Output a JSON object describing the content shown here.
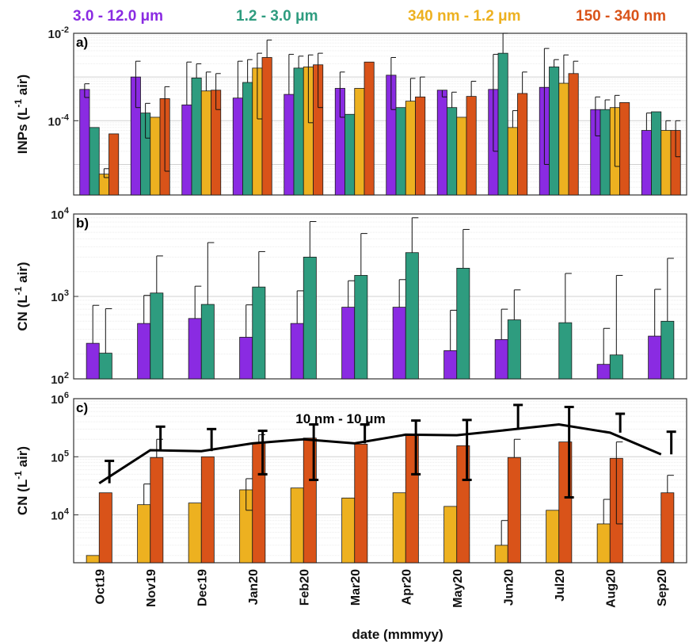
{
  "legend": [
    {
      "label": "3.0 - 12.0 μm",
      "color": "#8A2BE2"
    },
    {
      "label": "1.2 - 3.0 μm",
      "color": "#2E9C7F"
    },
    {
      "label": "340 nm - 1.2 μm",
      "color": "#EDB120"
    },
    {
      "label": "150 - 340 nm",
      "color": "#D95319"
    }
  ],
  "xlabel": "date (mmmyy)",
  "categories": [
    "Oct19",
    "Nov19",
    "Dec19",
    "Jan20",
    "Feb20",
    "Mar20",
    "Apr20",
    "May20",
    "Jun20",
    "Jul20",
    "Aug20",
    "Sep20"
  ],
  "chart_data": [
    {
      "type": "bar",
      "panel_label": "a)",
      "ylabel_main": "INPs (L",
      "ylabel_sup": "-1",
      "ylabel_tail": " air)",
      "yscale": "log",
      "ylim": [
        2e-06,
        0.01
      ],
      "yticks": [
        {
          "value": 0.0001,
          "base": "10",
          "exp": "-4"
        },
        {
          "value": 0.01,
          "base": "10",
          "exp": "-2"
        }
      ],
      "categories": [
        "Oct19",
        "Nov19",
        "Dec19",
        "Jan20",
        "Feb20",
        "Mar20",
        "Apr20",
        "May20",
        "Jun20",
        "Jul20",
        "Aug20",
        "Sep20"
      ],
      "series": [
        {
          "name": "3.0 - 12.0 μm",
          "color": "#8A2BE2",
          "values": [
            0.00052,
            0.001,
            0.00023,
            0.00033,
            0.0004,
            0.00055,
            0.0011,
            0.0005,
            0.00052,
            0.00058,
            0.00018,
            6e-05
          ],
          "err_low": [
            0.00034,
            0.0002,
            null,
            null,
            null,
            0.00012,
            0.00018,
            null,
            2e-05,
            1e-05,
            4.5e-05,
            null
          ],
          "err_high": [
            0.0007,
            0.0023,
            0.0022,
            0.0023,
            0.0033,
            0.0013,
            0.0028,
            0.00035,
            0.0033,
            0.0045,
            0.00035,
            0.00015
          ]
        },
        {
          "name": "1.2 - 3.0 μm",
          "color": "#2E9C7F",
          "values": [
            7e-05,
            0.00015,
            0.00095,
            0.00075,
            0.0016,
            0.00014,
            0.0002,
            0.0002,
            0.0035,
            0.0017,
            0.00018,
            0.00016
          ],
          "err_low": [
            null,
            4e-05,
            null,
            null,
            null,
            null,
            null,
            null,
            null,
            null,
            null,
            null
          ],
          "err_high": [
            null,
            0.00025,
            0.002,
            0.0025,
            0.003,
            null,
            null,
            0.00045,
            0.01,
            0.0025,
            0.0003,
            null
          ],
          "no_error": [
            0,
            1
          ]
        },
        {
          "name": "340 nm - 1.2 μm",
          "color": "#EDB120",
          "values": [
            6e-06,
            0.00012,
            0.00048,
            0.0016,
            0.0017,
            0.00055,
            0.00028,
            0.00012,
            7e-05,
            0.00072,
            0.0002,
            6e-05
          ],
          "err_low": [
            5e-06,
            null,
            null,
            0.00011,
            9e-05,
            null,
            null,
            null,
            null,
            null,
            9e-06,
            null
          ],
          "err_high": [
            8e-06,
            null,
            0.0013,
            0.0035,
            0.0032,
            null,
            0.00093,
            null,
            0.00017,
            0.0032,
            0.00038,
            0.0001
          ]
        },
        {
          "name": "150 - 340 nm",
          "color": "#D95319",
          "values": [
            5e-05,
            0.00032,
            0.0005,
            0.0028,
            0.0019,
            0.0022,
            0.00035,
            0.00036,
            0.00042,
            0.0012,
            0.00026,
            6e-05
          ],
          "err_low": [
            null,
            7e-06,
            0.00018,
            null,
            0.0002,
            null,
            null,
            null,
            null,
            null,
            null,
            1.5e-05
          ],
          "err_high": [
            null,
            0.0006,
            0.0012,
            0.007,
            0.0035,
            null,
            0.001,
            0.0008,
            0.0013,
            0.0023,
            null,
            0.0001
          ]
        }
      ]
    },
    {
      "type": "bar",
      "panel_label": "b)",
      "ylabel_main": "CN (L",
      "ylabel_sup": "-1",
      "ylabel_tail": " air)",
      "yscale": "log",
      "ylim": [
        100,
        10000
      ],
      "yticks": [
        {
          "value": 100,
          "base": "10",
          "exp": "2"
        },
        {
          "value": 1000,
          "base": "10",
          "exp": "3"
        },
        {
          "value": 10000,
          "base": "10",
          "exp": "4"
        }
      ],
      "categories": [
        "Oct19",
        "Nov19",
        "Dec19",
        "Jan20",
        "Feb20",
        "Mar20",
        "Apr20",
        "May20",
        "Jun20",
        "Jul20",
        "Aug20",
        "Sep20"
      ],
      "series": [
        {
          "name": "3.0 - 12.0 μm",
          "color": "#8A2BE2",
          "values": [
            270,
            470,
            540,
            320,
            470,
            740,
            740,
            220,
            300,
            null,
            150,
            330
          ],
          "err_high": [
            780,
            1030,
            1330,
            790,
            1170,
            1550,
            1600,
            680,
            700,
            null,
            410,
            1220
          ]
        },
        {
          "name": "1.2 - 3.0 μm",
          "color": "#2E9C7F",
          "values": [
            205,
            1100,
            800,
            1300,
            3000,
            1800,
            3400,
            2200,
            520,
            480,
            195,
            500
          ],
          "err_high": [
            710,
            3100,
            4500,
            3500,
            8100,
            5800,
            9000,
            6500,
            1200,
            1900,
            1800,
            2900
          ]
        }
      ]
    },
    {
      "type": "bar+line",
      "panel_label": "c)",
      "ylabel_main": "CN (L",
      "ylabel_sup": "-1",
      "ylabel_tail": " air)",
      "yscale": "log",
      "ylim": [
        1500,
        1000000
      ],
      "yticks": [
        {
          "value": 10000,
          "base": "10",
          "exp": "4"
        },
        {
          "value": 100000,
          "base": "10",
          "exp": "5"
        },
        {
          "value": 1000000,
          "base": "10",
          "exp": "6"
        }
      ],
      "categories": [
        "Oct19",
        "Nov19",
        "Dec19",
        "Jan20",
        "Feb20",
        "Mar20",
        "Apr20",
        "May20",
        "Jun20",
        "Jul20",
        "Aug20",
        "Sep20"
      ],
      "series": [
        {
          "name": "340 nm - 1.2 μm",
          "color": "#EDB120",
          "values": [
            2000,
            15000,
            16000,
            27000,
            29000,
            19500,
            24000,
            14000,
            3000,
            12000,
            7000,
            null
          ],
          "err_low": [
            null,
            null,
            null,
            12000,
            null,
            null,
            null,
            null,
            null,
            null,
            null,
            null
          ],
          "err_high": [
            null,
            34000,
            null,
            42000,
            null,
            null,
            null,
            null,
            8000,
            null,
            18500,
            2800
          ]
        },
        {
          "name": "150 - 340 nm",
          "color": "#D95319",
          "values": [
            24000,
            97000,
            100000,
            175000,
            210000,
            165000,
            235000,
            155000,
            97000,
            180000,
            94000,
            24000
          ],
          "err_low": [
            null,
            null,
            null,
            null,
            null,
            null,
            null,
            null,
            null,
            null,
            7000,
            null
          ],
          "err_high": [
            null,
            200000,
            null,
            240000,
            null,
            null,
            null,
            null,
            200000,
            null,
            180000,
            48000
          ]
        }
      ],
      "line": {
        "label": "10 nm - 10 μm",
        "color": "#000000",
        "values": [
          35000,
          130000,
          125000,
          170000,
          200000,
          170000,
          240000,
          235000,
          290000,
          360000,
          260000,
          110000
        ],
        "err_low": [
          null,
          null,
          null,
          50000,
          40000,
          null,
          50000,
          40000,
          null,
          20000,
          null,
          null
        ],
        "err_high": [
          85000,
          330000,
          300000,
          280000,
          360000,
          360000,
          420000,
          430000,
          780000,
          720000,
          550000,
          270000
        ]
      }
    }
  ]
}
